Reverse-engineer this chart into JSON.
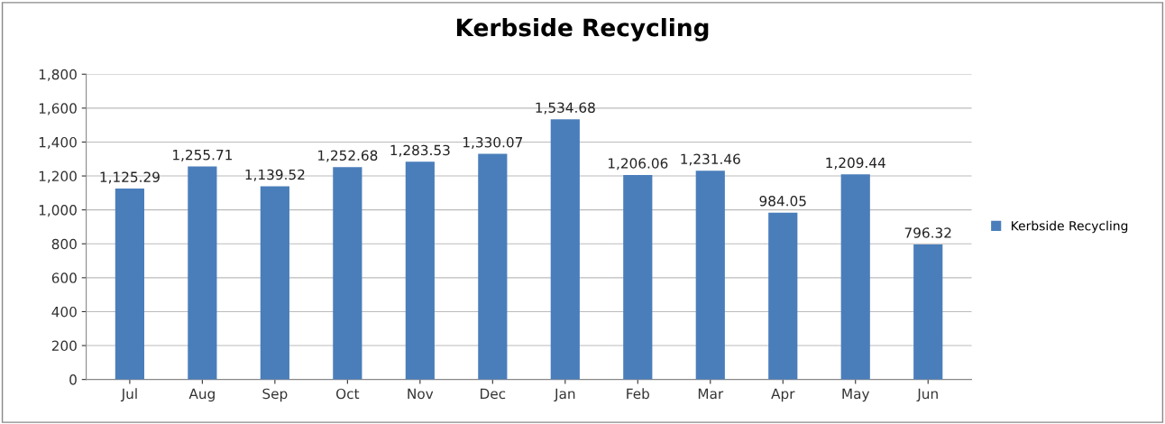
{
  "chart_data": {
    "type": "bar",
    "title": "Kerbside Recycling",
    "categories": [
      "Jul",
      "Aug",
      "Sep",
      "Oct",
      "Nov",
      "Dec",
      "Jan",
      "Feb",
      "Mar",
      "Apr",
      "May",
      "Jun"
    ],
    "series": [
      {
        "name": "Kerbside Recycling",
        "color": "#4a7ebb",
        "values": [
          1125.29,
          1255.71,
          1139.52,
          1252.68,
          1283.53,
          1330.07,
          1534.68,
          1206.06,
          1231.46,
          984.05,
          1209.44,
          796.32
        ],
        "value_labels": [
          "1,125.29",
          "1,255.71",
          "1,139.52",
          "1,252.68",
          "1,283.53",
          "1,330.07",
          "1,534.68",
          "1,206.06",
          "1,231.46",
          "984.05",
          "1,209.44",
          "796.32"
        ]
      }
    ],
    "ylim": [
      0,
      1800
    ],
    "yticks": [
      0,
      200,
      400,
      600,
      800,
      {
        "value": 1000,
        "label": "1,000"
      },
      {
        "value": 1200,
        "label": "1,200"
      },
      {
        "value": 1400,
        "label": "1,400"
      },
      {
        "value": 1600,
        "label": "1,600"
      },
      {
        "value": 1800,
        "label": "1,800"
      }
    ],
    "grid": "y",
    "legend": "right"
  }
}
